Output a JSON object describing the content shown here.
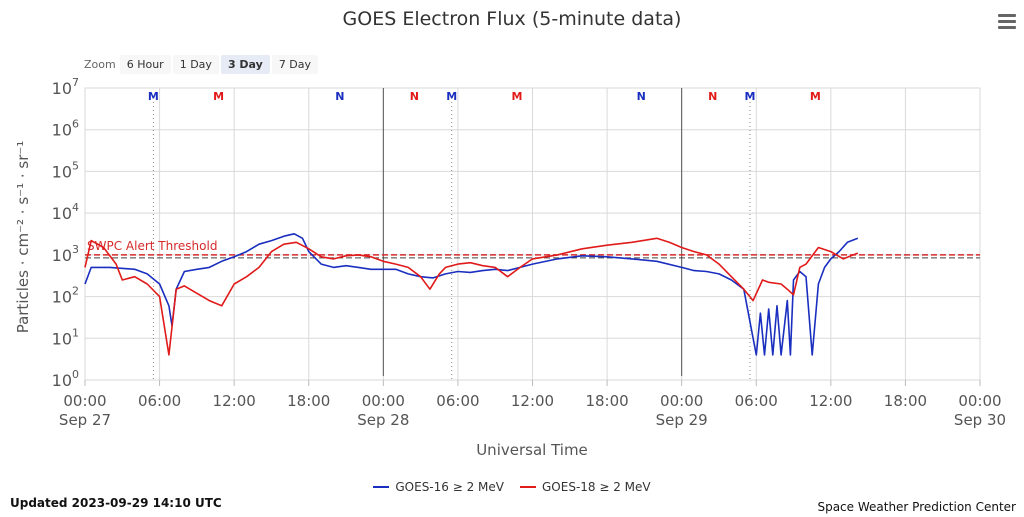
{
  "header": {
    "title": "GOES Electron Flux (5-minute data)"
  },
  "zoom": {
    "label": "Zoom",
    "buttons": [
      {
        "label": "6 Hour",
        "active": false
      },
      {
        "label": "1 Day",
        "active": false
      },
      {
        "label": "3 Day",
        "active": true
      },
      {
        "label": "7 Day",
        "active": false
      }
    ]
  },
  "footer": {
    "updated": "Updated 2023-09-29 14:10 UTC",
    "credit": "Space Weather Prediction Center"
  },
  "colors": {
    "goes16": "#1a2fbf",
    "goes18": "#e11a1a",
    "threshold": "#d62b2b",
    "grid": "#d9d9d9"
  },
  "chart_data": {
    "type": "line",
    "title": "GOES Electron Flux (5-minute data)",
    "xlabel": "Universal Time",
    "ylabel": "Particles · cm⁻² · s⁻¹ · sr⁻¹",
    "yscale": "log",
    "ylim": [
      1,
      10000000
    ],
    "xlim": [
      "2023-09-27 00:00",
      "2023-09-30 00:00"
    ],
    "y_ticks": [
      {
        "value": 1,
        "base": "10",
        "exp": "0"
      },
      {
        "value": 10,
        "base": "10",
        "exp": "1"
      },
      {
        "value": 100,
        "base": "10",
        "exp": "2"
      },
      {
        "value": 1000,
        "base": "10",
        "exp": "3"
      },
      {
        "value": 10000,
        "base": "10",
        "exp": "4"
      },
      {
        "value": 100000,
        "base": "10",
        "exp": "5"
      },
      {
        "value": 1000000,
        "base": "10",
        "exp": "6"
      },
      {
        "value": 10000000,
        "base": "10",
        "exp": "7"
      }
    ],
    "x_ticks": [
      {
        "time": "2023-09-27 00:00",
        "label": "00:00",
        "date": "Sep 27"
      },
      {
        "time": "2023-09-27 06:00",
        "label": "06:00",
        "date": ""
      },
      {
        "time": "2023-09-27 12:00",
        "label": "12:00",
        "date": ""
      },
      {
        "time": "2023-09-27 18:00",
        "label": "18:00",
        "date": ""
      },
      {
        "time": "2023-09-28 00:00",
        "label": "00:00",
        "date": "Sep 28"
      },
      {
        "time": "2023-09-28 06:00",
        "label": "06:00",
        "date": ""
      },
      {
        "time": "2023-09-28 12:00",
        "label": "12:00",
        "date": ""
      },
      {
        "time": "2023-09-28 18:00",
        "label": "18:00",
        "date": ""
      },
      {
        "time": "2023-09-29 00:00",
        "label": "00:00",
        "date": "Sep 29"
      },
      {
        "time": "2023-09-29 06:00",
        "label": "06:00",
        "date": ""
      },
      {
        "time": "2023-09-29 12:00",
        "label": "12:00",
        "date": ""
      },
      {
        "time": "2023-09-29 18:00",
        "label": "18:00",
        "date": ""
      },
      {
        "time": "2023-09-30 00:00",
        "label": "00:00",
        "date": "Sep 30"
      }
    ],
    "day_separators": [
      "2023-09-28 00:00",
      "2023-09-29 00:00"
    ],
    "threshold": {
      "value": 1000,
      "label": "SWPC Alert Threshold"
    },
    "markers": [
      {
        "time": "2023-09-27 05:30",
        "label": "M",
        "color": "#1a2fbf",
        "dotted": true
      },
      {
        "time": "2023-09-27 10:45",
        "label": "M",
        "color": "#e11a1a",
        "dotted": false
      },
      {
        "time": "2023-09-27 20:30",
        "label": "N",
        "color": "#1a2fbf",
        "dotted": false
      },
      {
        "time": "2023-09-28 02:30",
        "label": "N",
        "color": "#e11a1a",
        "dotted": false
      },
      {
        "time": "2023-09-28 05:30",
        "label": "M",
        "color": "#1a2fbf",
        "dotted": true
      },
      {
        "time": "2023-09-28 10:45",
        "label": "M",
        "color": "#e11a1a",
        "dotted": false
      },
      {
        "time": "2023-09-28 20:45",
        "label": "N",
        "color": "#1a2fbf",
        "dotted": false
      },
      {
        "time": "2023-09-29 02:30",
        "label": "N",
        "color": "#e11a1a",
        "dotted": false
      },
      {
        "time": "2023-09-29 05:30",
        "label": "M",
        "color": "#1a2fbf",
        "dotted": true
      },
      {
        "time": "2023-09-29 10:45",
        "label": "M",
        "color": "#e11a1a",
        "dotted": false
      }
    ],
    "series": [
      {
        "name": "GOES-16 ≥ 2 MeV",
        "color": "#1a2fbf",
        "points": [
          [
            "2023-09-27 00:00",
            200
          ],
          [
            "2023-09-27 00:30",
            500
          ],
          [
            "2023-09-27 02:00",
            500
          ],
          [
            "2023-09-27 04:00",
            450
          ],
          [
            "2023-09-27 05:00",
            350
          ],
          [
            "2023-09-27 06:00",
            200
          ],
          [
            "2023-09-27 06:45",
            60
          ],
          [
            "2023-09-27 07:00",
            20
          ],
          [
            "2023-09-27 07:20",
            150
          ],
          [
            "2023-09-27 08:00",
            400
          ],
          [
            "2023-09-27 09:00",
            450
          ],
          [
            "2023-09-27 10:00",
            500
          ],
          [
            "2023-09-27 11:00",
            700
          ],
          [
            "2023-09-27 12:00",
            900
          ],
          [
            "2023-09-27 13:00",
            1200
          ],
          [
            "2023-09-27 14:00",
            1800
          ],
          [
            "2023-09-27 15:00",
            2200
          ],
          [
            "2023-09-27 16:00",
            2800
          ],
          [
            "2023-09-27 16:50",
            3200
          ],
          [
            "2023-09-27 17:30",
            2500
          ],
          [
            "2023-09-27 18:00",
            1200
          ],
          [
            "2023-09-27 19:00",
            600
          ],
          [
            "2023-09-27 20:00",
            500
          ],
          [
            "2023-09-27 21:00",
            550
          ],
          [
            "2023-09-27 22:00",
            500
          ],
          [
            "2023-09-27 23:00",
            450
          ],
          [
            "2023-09-28 00:00",
            450
          ],
          [
            "2023-09-28 01:00",
            450
          ],
          [
            "2023-09-28 02:00",
            350
          ],
          [
            "2023-09-28 03:00",
            300
          ],
          [
            "2023-09-28 04:00",
            280
          ],
          [
            "2023-09-28 05:00",
            350
          ],
          [
            "2023-09-28 06:00",
            400
          ],
          [
            "2023-09-28 07:00",
            380
          ],
          [
            "2023-09-28 08:00",
            420
          ],
          [
            "2023-09-28 09:00",
            450
          ],
          [
            "2023-09-28 10:00",
            420
          ],
          [
            "2023-09-28 11:00",
            500
          ],
          [
            "2023-09-28 12:00",
            600
          ],
          [
            "2023-09-28 14:00",
            800
          ],
          [
            "2023-09-28 16:00",
            950
          ],
          [
            "2023-09-28 18:00",
            900
          ],
          [
            "2023-09-28 20:00",
            800
          ],
          [
            "2023-09-28 22:00",
            700
          ],
          [
            "2023-09-29 00:00",
            500
          ],
          [
            "2023-09-29 01:00",
            420
          ],
          [
            "2023-09-29 02:00",
            400
          ],
          [
            "2023-09-29 03:00",
            350
          ],
          [
            "2023-09-29 04:00",
            250
          ],
          [
            "2023-09-29 05:00",
            150
          ],
          [
            "2023-09-29 05:45",
            10
          ],
          [
            "2023-09-29 06:00",
            4
          ],
          [
            "2023-09-29 06:20",
            40
          ],
          [
            "2023-09-29 06:40",
            4
          ],
          [
            "2023-09-29 07:00",
            50
          ],
          [
            "2023-09-29 07:20",
            4
          ],
          [
            "2023-09-29 07:40",
            60
          ],
          [
            "2023-09-29 08:00",
            4
          ],
          [
            "2023-09-29 08:30",
            80
          ],
          [
            "2023-09-29 08:45",
            4
          ],
          [
            "2023-09-29 09:00",
            250
          ],
          [
            "2023-09-29 09:30",
            400
          ],
          [
            "2023-09-29 10:00",
            300
          ],
          [
            "2023-09-29 10:30",
            4
          ],
          [
            "2023-09-29 11:00",
            200
          ],
          [
            "2023-09-29 11:30",
            500
          ],
          [
            "2023-09-29 12:00",
            800
          ],
          [
            "2023-09-29 12:40",
            1200
          ],
          [
            "2023-09-29 13:20",
            2000
          ],
          [
            "2023-09-29 14:10",
            2500
          ]
        ]
      },
      {
        "name": "GOES-18 ≥ 2 MeV",
        "color": "#e11a1a",
        "points": [
          [
            "2023-09-27 00:00",
            500
          ],
          [
            "2023-09-27 00:30",
            2200
          ],
          [
            "2023-09-27 01:30",
            1500
          ],
          [
            "2023-09-27 02:30",
            600
          ],
          [
            "2023-09-27 03:00",
            250
          ],
          [
            "2023-09-27 04:00",
            300
          ],
          [
            "2023-09-27 05:00",
            200
          ],
          [
            "2023-09-27 06:00",
            100
          ],
          [
            "2023-09-27 06:45",
            4
          ],
          [
            "2023-09-27 07:20",
            150
          ],
          [
            "2023-09-27 08:00",
            180
          ],
          [
            "2023-09-27 09:00",
            120
          ],
          [
            "2023-09-27 10:00",
            80
          ],
          [
            "2023-09-27 11:00",
            60
          ],
          [
            "2023-09-27 12:00",
            200
          ],
          [
            "2023-09-27 13:00",
            300
          ],
          [
            "2023-09-27 14:00",
            500
          ],
          [
            "2023-09-27 15:00",
            1200
          ],
          [
            "2023-09-27 16:00",
            1800
          ],
          [
            "2023-09-27 17:00",
            2000
          ],
          [
            "2023-09-27 18:00",
            1400
          ],
          [
            "2023-09-27 19:00",
            900
          ],
          [
            "2023-09-27 20:00",
            800
          ],
          [
            "2023-09-27 21:00",
            950
          ],
          [
            "2023-09-27 22:00",
            1000
          ],
          [
            "2023-09-27 23:00",
            900
          ],
          [
            "2023-09-28 00:00",
            700
          ],
          [
            "2023-09-28 01:00",
            600
          ],
          [
            "2023-09-28 02:00",
            500
          ],
          [
            "2023-09-28 03:00",
            300
          ],
          [
            "2023-09-28 03:45",
            150
          ],
          [
            "2023-09-28 04:30",
            350
          ],
          [
            "2023-09-28 05:00",
            500
          ],
          [
            "2023-09-28 06:00",
            600
          ],
          [
            "2023-09-28 07:00",
            650
          ],
          [
            "2023-09-28 08:00",
            550
          ],
          [
            "2023-09-28 09:00",
            500
          ],
          [
            "2023-09-28 10:00",
            300
          ],
          [
            "2023-09-28 11:00",
            500
          ],
          [
            "2023-09-28 12:00",
            800
          ],
          [
            "2023-09-28 14:00",
            1000
          ],
          [
            "2023-09-28 16:00",
            1400
          ],
          [
            "2023-09-28 18:00",
            1700
          ],
          [
            "2023-09-28 20:00",
            2000
          ],
          [
            "2023-09-28 22:00",
            2500
          ],
          [
            "2023-09-28 23:00",
            2000
          ],
          [
            "2023-09-29 00:00",
            1500
          ],
          [
            "2023-09-29 01:00",
            1200
          ],
          [
            "2023-09-29 02:00",
            1000
          ],
          [
            "2023-09-29 03:00",
            600
          ],
          [
            "2023-09-29 04:00",
            300
          ],
          [
            "2023-09-29 05:00",
            150
          ],
          [
            "2023-09-29 05:45",
            80
          ],
          [
            "2023-09-29 06:30",
            250
          ],
          [
            "2023-09-29 07:00",
            220
          ],
          [
            "2023-09-29 08:00",
            200
          ],
          [
            "2023-09-29 08:30",
            150
          ],
          [
            "2023-09-29 09:00",
            110
          ],
          [
            "2023-09-29 09:30",
            500
          ],
          [
            "2023-09-29 10:00",
            600
          ],
          [
            "2023-09-29 11:00",
            1500
          ],
          [
            "2023-09-29 12:00",
            1200
          ],
          [
            "2023-09-29 13:00",
            800
          ],
          [
            "2023-09-29 14:10",
            1100
          ]
        ]
      }
    ]
  }
}
